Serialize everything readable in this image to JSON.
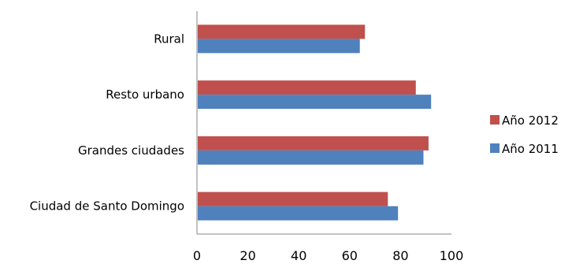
{
  "chart_data": {
    "type": "bar",
    "orientation": "horizontal",
    "categories": [
      "Ciudad de Santo Domingo",
      "Grandes ciudades",
      "Resto urbano",
      "Rural"
    ],
    "series": [
      {
        "name": "Año 2011",
        "color": "#4f81bd",
        "values": [
          79,
          89,
          92,
          64
        ]
      },
      {
        "name": "Año 2012",
        "color": "#c0504d",
        "values": [
          75,
          91,
          86,
          66
        ]
      }
    ],
    "x_ticks": [
      "0",
      "20",
      "40",
      "60",
      "80",
      "100"
    ],
    "xlim": [
      0,
      100
    ],
    "title": "",
    "xlabel": "",
    "ylabel": "",
    "grid": false,
    "legend": {
      "position": "right",
      "order": [
        "Año 2012",
        "Año 2011"
      ]
    }
  }
}
